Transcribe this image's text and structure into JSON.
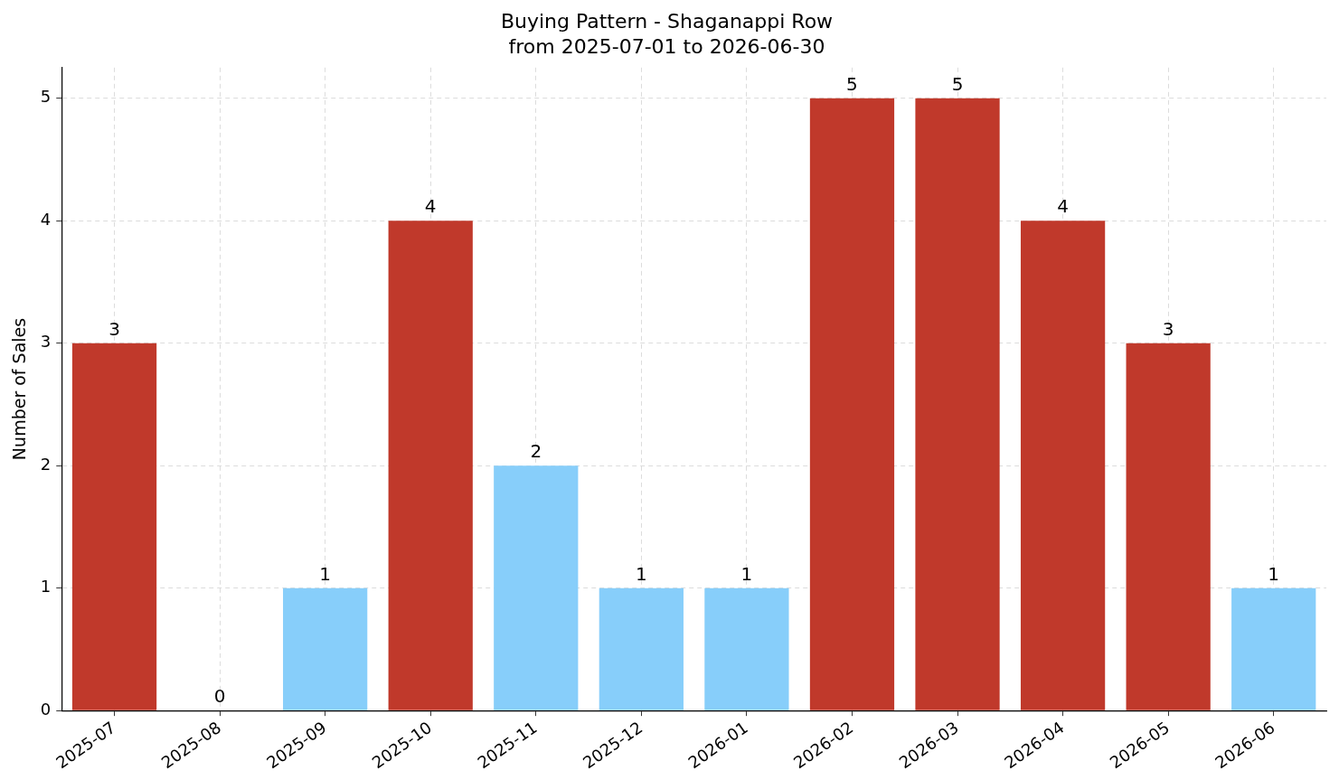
{
  "chart_data": {
    "type": "bar",
    "title": "Buying Pattern - Shaganappi Row",
    "subtitle": "from 2025-07-01 to 2026-06-30",
    "ylabel": "Number of Sales",
    "categories": [
      "2025-07",
      "2025-08",
      "2025-09",
      "2025-10",
      "2025-11",
      "2025-12",
      "2026-01",
      "2026-02",
      "2026-03",
      "2026-04",
      "2026-05",
      "2026-06"
    ],
    "values": [
      3,
      0,
      1,
      4,
      2,
      1,
      1,
      5,
      5,
      4,
      3,
      1
    ],
    "colors": [
      "#c0392b",
      "#c0392b",
      "#87cefa",
      "#c0392b",
      "#87cefa",
      "#87cefa",
      "#87cefa",
      "#c0392b",
      "#c0392b",
      "#c0392b",
      "#c0392b",
      "#87cefa"
    ],
    "ylim": [
      0,
      5.25
    ],
    "yticks": [
      0,
      1,
      2,
      3,
      4,
      5
    ],
    "grid": true,
    "data_labels": true
  }
}
